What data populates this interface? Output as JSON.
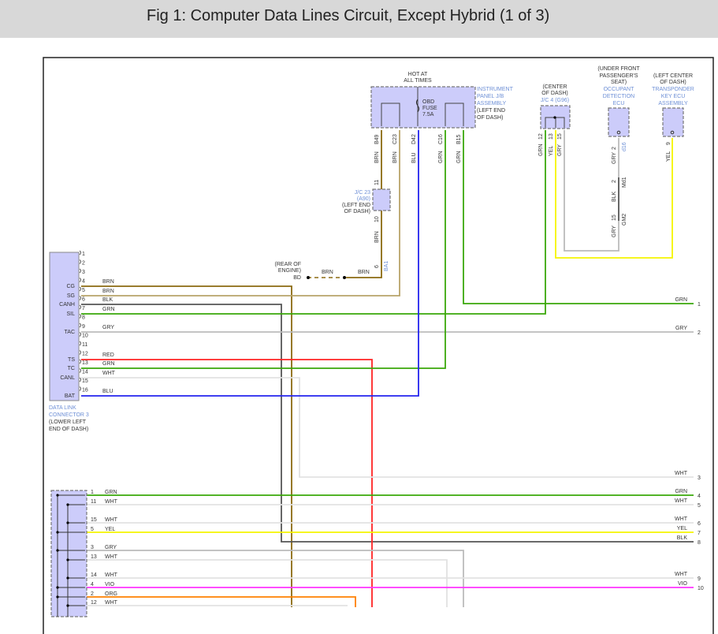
{
  "title": "Fig 1: Computer Data Lines Circuit, Except Hybrid (1 of 3)",
  "wire_colors": {
    "BRN": "#8b6a10",
    "BRN2": "#b8a46a",
    "BLK": "#555555",
    "GRN": "#3aa80a",
    "GRY": "#bbbbbb",
    "RED": "#ff2424",
    "WHT": "#e2e2e2",
    "BLU": "#2424ee",
    "YEL": "#f5f500",
    "VIO": "#ff33ff",
    "ORG": "#ff8000"
  },
  "jb": {
    "hot": [
      "HOT AT",
      "ALL TIMES"
    ],
    "fuse": [
      "OBD",
      "FUSE",
      "7.5A"
    ],
    "name": [
      "INSTRUMENT",
      "PANEL J/B",
      "ASSEMBLY"
    ],
    "loc": [
      "(LEFT END",
      "OF DASH)"
    ],
    "pins": [
      "B49",
      "C23",
      "D42",
      "C16",
      "B15"
    ],
    "colors": [
      "BRN",
      "BRN",
      "BLU",
      "GRN",
      "GRN"
    ]
  },
  "jc23": {
    "name": [
      "J/C 23",
      "(A90)"
    ],
    "loc": [
      "(LEFT END",
      "OF DASH)"
    ],
    "pin_top": "11",
    "pin_bottom": "10",
    "wire": "BRN",
    "pin6": "6",
    "conn": "BA1"
  },
  "ground": {
    "loc": [
      "(REAR OF",
      "ENGINE)"
    ],
    "id": "BD",
    "w1": "BRN",
    "w2": "BRN"
  },
  "jc4": {
    "loc": [
      "(CENTER",
      "OF DASH)"
    ],
    "name": "J/C 4 (G96)",
    "pins": [
      "12",
      "13",
      "15"
    ],
    "colors": [
      "GRN",
      "YEL",
      "GRY"
    ]
  },
  "occupant": {
    "loc": [
      "(UNDER FRONT",
      "PASSENGER'S",
      "SEAT)"
    ],
    "name": [
      "OCCUPANT",
      "DETECTION",
      "ECU"
    ],
    "pin": "2",
    "conn": "d16",
    "wire": "GRY",
    "j_pin": "2",
    "j_conn": "Md1",
    "j_wire": "BLK",
    "g_pin": "15",
    "g_conn": "GM2",
    "g_wire": "GRY"
  },
  "transponder": {
    "loc": [
      "(LEFT CENTER",
      "OF DASH)"
    ],
    "name": [
      "TRANSPONDER",
      "KEY ECU",
      "ASSEMBLY"
    ],
    "pin": "9",
    "wire": "YEL"
  },
  "dlc": {
    "name": [
      "DATA LINK",
      "CONNECTOR 3"
    ],
    "loc": [
      "(LOWER LEFT",
      "END OF DASH)"
    ],
    "pins": [
      {
        "n": "1",
        "name": "",
        "wire": ""
      },
      {
        "n": "2",
        "name": "",
        "wire": ""
      },
      {
        "n": "3",
        "name": "",
        "wire": ""
      },
      {
        "n": "4",
        "name": "CG",
        "wire": "BRN"
      },
      {
        "n": "5",
        "name": "SG",
        "wire": "BRN"
      },
      {
        "n": "6",
        "name": "CANH",
        "wire": "BLK"
      },
      {
        "n": "7",
        "name": "SIL",
        "wire": "GRN"
      },
      {
        "n": "8",
        "name": "",
        "wire": ""
      },
      {
        "n": "9",
        "name": "TAC",
        "wire": "GRY"
      },
      {
        "n": "10",
        "name": "",
        "wire": ""
      },
      {
        "n": "11",
        "name": "",
        "wire": ""
      },
      {
        "n": "12",
        "name": "TS",
        "wire": "RED"
      },
      {
        "n": "13",
        "name": "TC",
        "wire": "GRN"
      },
      {
        "n": "14",
        "name": "CANL",
        "wire": "WHT"
      },
      {
        "n": "15",
        "name": "",
        "wire": ""
      },
      {
        "n": "16",
        "name": "BAT",
        "wire": "BLU"
      }
    ]
  },
  "lower_connector": {
    "pins": [
      {
        "n": "1",
        "wire": "GRN"
      },
      {
        "n": "11",
        "wire": "WHT"
      },
      {
        "n": "15",
        "wire": "WHT"
      },
      {
        "n": "5",
        "wire": "YEL"
      },
      {
        "n": "3",
        "wire": "GRY"
      },
      {
        "n": "13",
        "wire": "WHT"
      },
      {
        "n": "14",
        "wire": "WHT"
      },
      {
        "n": "4",
        "wire": "VIO"
      },
      {
        "n": "2",
        "wire": "ORG"
      },
      {
        "n": "12",
        "wire": "WHT"
      }
    ]
  },
  "continuations": [
    {
      "n": "1",
      "wire": "GRN"
    },
    {
      "n": "2",
      "wire": "GRY"
    },
    {
      "n": "3",
      "wire": "WHT"
    },
    {
      "n": "4",
      "wire": "GRN"
    },
    {
      "n": "5",
      "wire": "WHT"
    },
    {
      "n": "6",
      "wire": "WHT"
    },
    {
      "n": "7",
      "wire": "YEL"
    },
    {
      "n": "8",
      "wire": "BLK"
    },
    {
      "n": "9",
      "wire": "WHT"
    },
    {
      "n": "10",
      "wire": "VIO"
    }
  ]
}
